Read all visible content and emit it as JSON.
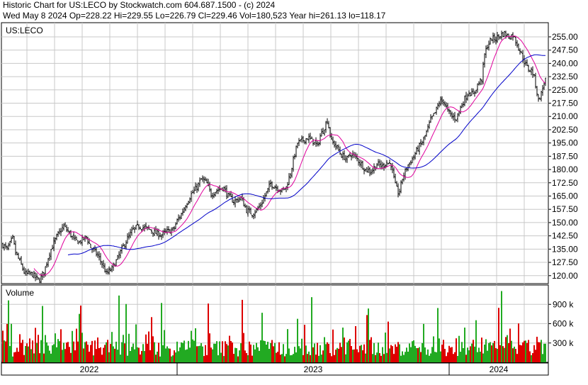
{
  "header": {
    "line1": "Historic Chart for US:LECO by Stockwatch.com 604.687.1500 - (c) 2024",
    "line2": "Wed May  8 2024   Op=228.22  Hi=229.55  Lo=226.79  Cl=229.46  Vol=180,523  Year hi=261.13  lo=118.17"
  },
  "colors": {
    "background": "#ffffff",
    "grid": "#c8c8c8",
    "price_bars": "#000000",
    "ma_short": "#e0009c",
    "ma_long": "#0000c8",
    "volume_up": "#22aa22",
    "volume_down": "#dd0000"
  },
  "chart_data": [
    {
      "type": "ohlc",
      "title": "US:LECO",
      "y_ticks": [
        "255.00",
        "247.50",
        "240.00",
        "232.50",
        "225.00",
        "217.50",
        "210.00",
        "202.50",
        "195.00",
        "187.50",
        "180.00",
        "172.50",
        "165.00",
        "157.50",
        "150.00",
        "142.50",
        "135.00",
        "127.50",
        "120.00"
      ],
      "ylim": [
        115.5,
        263
      ],
      "grid": true,
      "x_labels": [
        "2022",
        "2023",
        "2024"
      ],
      "anchors": [
        [
          0,
          139
        ],
        [
          10,
          135
        ],
        [
          18,
          141
        ],
        [
          22,
          133
        ],
        [
          28,
          128
        ],
        [
          35,
          121
        ],
        [
          45,
          121
        ],
        [
          55,
          117
        ],
        [
          62,
          122
        ],
        [
          70,
          133
        ],
        [
          80,
          142
        ],
        [
          90,
          148
        ],
        [
          96,
          145
        ],
        [
          100,
          143
        ],
        [
          105,
          140
        ],
        [
          112,
          139
        ],
        [
          122,
          142
        ],
        [
          128,
          136
        ],
        [
          135,
          133
        ],
        [
          140,
          130
        ],
        [
          145,
          126
        ],
        [
          150,
          121
        ],
        [
          158,
          124
        ],
        [
          165,
          129
        ],
        [
          172,
          135
        ],
        [
          180,
          141
        ],
        [
          188,
          146
        ],
        [
          196,
          148
        ],
        [
          205,
          147
        ],
        [
          212,
          146
        ],
        [
          220,
          144
        ],
        [
          228,
          143
        ],
        [
          236,
          145
        ],
        [
          245,
          146
        ],
        [
          250,
          151
        ],
        [
          255,
          154
        ],
        [
          262,
          160
        ],
        [
          270,
          166
        ],
        [
          278,
          170
        ],
        [
          285,
          175
        ],
        [
          292,
          172
        ],
        [
          298,
          166
        ],
        [
          305,
          168
        ],
        [
          315,
          170
        ],
        [
          322,
          165
        ],
        [
          330,
          162
        ],
        [
          340,
          164
        ],
        [
          348,
          157
        ],
        [
          356,
          155
        ],
        [
          362,
          157
        ],
        [
          368,
          160
        ],
        [
          375,
          166
        ],
        [
          382,
          172
        ],
        [
          390,
          170
        ],
        [
          398,
          168
        ],
        [
          404,
          170
        ],
        [
          410,
          178
        ],
        [
          415,
          187
        ],
        [
          420,
          195
        ],
        [
          425,
          196
        ],
        [
          435,
          198
        ],
        [
          442,
          196
        ],
        [
          448,
          193
        ],
        [
          452,
          199
        ],
        [
          456,
          202
        ],
        [
          462,
          208
        ],
        [
          468,
          196
        ],
        [
          475,
          193
        ],
        [
          482,
          188
        ],
        [
          490,
          186
        ],
        [
          496,
          189
        ],
        [
          504,
          186
        ],
        [
          510,
          183
        ],
        [
          516,
          180
        ],
        [
          524,
          179
        ],
        [
          532,
          183
        ],
        [
          540,
          182
        ],
        [
          546,
          184
        ],
        [
          552,
          183
        ],
        [
          558,
          171
        ],
        [
          563,
          166
        ],
        [
          568,
          175
        ],
        [
          575,
          182
        ],
        [
          582,
          186
        ],
        [
          590,
          192
        ],
        [
          597,
          196
        ],
        [
          602,
          201
        ],
        [
          608,
          208
        ],
        [
          614,
          212
        ],
        [
          620,
          218
        ],
        [
          626,
          219
        ],
        [
          632,
          213
        ],
        [
          638,
          210
        ],
        [
          644,
          209
        ],
        [
          650,
          215
        ],
        [
          656,
          220
        ],
        [
          662,
          224
        ],
        [
          668,
          222
        ],
        [
          674,
          228
        ],
        [
          680,
          231
        ],
        [
          684,
          245
        ],
        [
          688,
          250
        ],
        [
          694,
          254
        ],
        [
          700,
          254
        ],
        [
          706,
          256
        ],
        [
          712,
          257
        ],
        [
          718,
          255
        ],
        [
          724,
          256
        ],
        [
          730,
          251
        ],
        [
          735,
          246
        ],
        [
          740,
          241
        ],
        [
          745,
          237
        ],
        [
          750,
          236
        ],
        [
          753,
          234
        ],
        [
          756,
          228
        ],
        [
          760,
          219
        ],
        [
          764,
          223
        ],
        [
          768,
          229
        ],
        [
          770,
          231
        ]
      ],
      "series": [
        {
          "name": "moving-average-short"
        },
        {
          "name": "moving-average-long"
        }
      ]
    },
    {
      "type": "bar",
      "title": "Volume",
      "y_ticks": [
        "900 k",
        "600 k",
        "300 k"
      ],
      "ylim": [
        0,
        1200000
      ]
    }
  ]
}
